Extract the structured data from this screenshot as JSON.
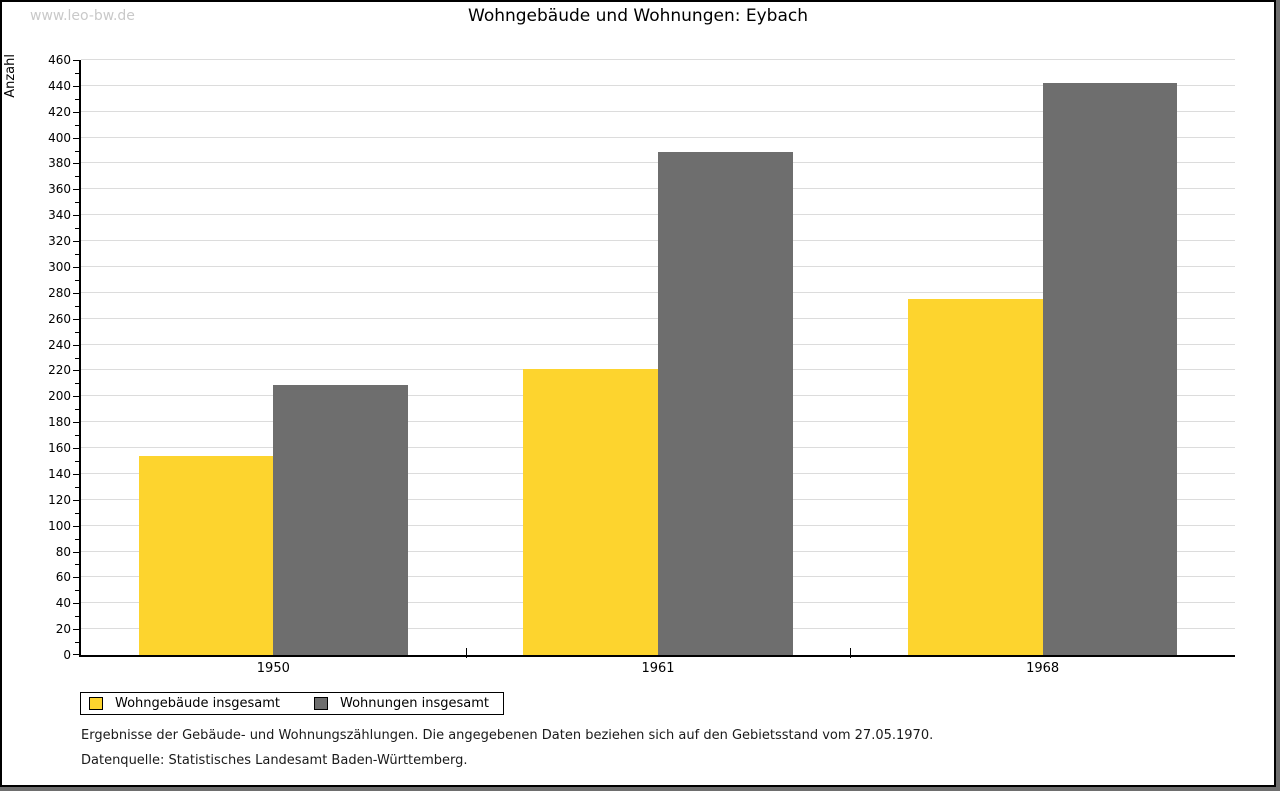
{
  "watermark": "www.leo-bw.de",
  "header": {
    "title": "Wohngebäude und Wohnungen: Eybach"
  },
  "chart_data": {
    "type": "bar",
    "title": "Wohngebäude und Wohnungen: Eybach",
    "xlabel": "",
    "ylabel": "Anzahl",
    "categories": [
      "1950",
      "1961",
      "1968"
    ],
    "series": [
      {
        "name": "Wohngebäude insgesamt",
        "color": "#fdd42e",
        "values": [
          154,
          221,
          275
        ]
      },
      {
        "name": "Wohnungen insgesamt",
        "color": "#6e6e6e",
        "values": [
          209,
          389,
          442
        ]
      }
    ],
    "ylim": [
      0,
      460
    ],
    "ytick_step": 20,
    "yminor_step": 10,
    "grid": true,
    "legend_position": "bottom-left",
    "gridline_color": "#dcdcdc"
  },
  "footer": {
    "line1": "Ergebnisse der Gebäude- und Wohnungszählungen. Die angegebenen Daten beziehen sich auf den Gebietsstand vom 27.05.1970.",
    "line2": "Datenquelle: Statistisches Landesamt Baden-Württemberg."
  }
}
